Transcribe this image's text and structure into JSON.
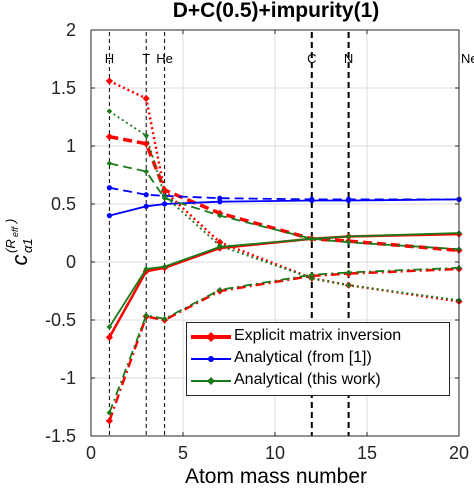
{
  "chart_data": {
    "type": "line",
    "title": "D+C(0.5)+impurity(1)",
    "xlabel": "Atom mass number",
    "ylabel": "c_{α1}^{(R_{eff})}",
    "xlim": [
      0,
      20
    ],
    "ylim": [
      -1.5,
      2
    ],
    "xticks": [
      0,
      5,
      10,
      15,
      20
    ],
    "xtick_labels": [
      "0",
      "5",
      "10",
      "15",
      "20"
    ],
    "yticks": [
      -1.5,
      -1,
      -0.5,
      0,
      0.5,
      1,
      1.5,
      2
    ],
    "ytick_labels": [
      "-1.5",
      "-1",
      "-0.5",
      "0",
      "0.5",
      "1",
      "1.5",
      "2"
    ],
    "grid": true,
    "legend_position": "bottom-right",
    "vlines": [
      {
        "x": 1,
        "label": "H",
        "style": "thin"
      },
      {
        "x": 3,
        "label": "T",
        "style": "thin"
      },
      {
        "x": 4,
        "label": "He",
        "style": "thin"
      },
      {
        "x": 12,
        "label": "C",
        "style": "thick"
      },
      {
        "x": 14,
        "label": "N",
        "style": "thick"
      },
      {
        "x": 20,
        "label": "Ne",
        "style": "thin"
      }
    ],
    "x": [
      1,
      3,
      4,
      7,
      12,
      14,
      20
    ],
    "legend": [
      {
        "label": "Explicit matrix inversion",
        "color": "#ff0000"
      },
      {
        "label": "Analytical (from [1])",
        "color": "#0000ff"
      },
      {
        "label": "Analytical (this work)",
        "color": "#1a7a1a"
      }
    ],
    "series": [
      {
        "group": "Explicit matrix inversion",
        "line": "solid",
        "values": [
          -0.65,
          -0.08,
          -0.05,
          0.12,
          0.2,
          0.22,
          0.24
        ]
      },
      {
        "group": "Explicit matrix inversion",
        "line": "dashed",
        "values": [
          1.08,
          1.02,
          0.62,
          0.42,
          0.2,
          0.18,
          0.1
        ]
      },
      {
        "group": "Explicit matrix inversion",
        "line": "dotted",
        "values": [
          1.56,
          1.41,
          0.61,
          0.17,
          -0.14,
          -0.2,
          -0.34
        ]
      },
      {
        "group": "Explicit matrix inversion",
        "line": "dashdot",
        "values": [
          -1.37,
          -0.47,
          -0.5,
          -0.25,
          -0.12,
          -0.1,
          -0.06
        ]
      },
      {
        "group": "Analytical (from [1])",
        "line": "solid",
        "values": [
          0.4,
          0.48,
          0.5,
          0.52,
          0.53,
          0.53,
          0.54
        ]
      },
      {
        "group": "Analytical (from [1])",
        "line": "dashed",
        "values": [
          0.64,
          0.58,
          0.57,
          0.55,
          0.54,
          0.54,
          0.54
        ]
      },
      {
        "group": "Analytical (this work)",
        "line": "solid",
        "values": [
          -0.56,
          -0.06,
          -0.04,
          0.13,
          0.2,
          0.22,
          0.25
        ]
      },
      {
        "group": "Analytical (this work)",
        "line": "dashed",
        "values": [
          0.85,
          0.78,
          0.55,
          0.4,
          0.2,
          0.17,
          0.11
        ]
      },
      {
        "group": "Analytical (this work)",
        "line": "dotted",
        "values": [
          1.3,
          1.09,
          0.57,
          0.14,
          -0.14,
          -0.2,
          -0.33
        ]
      },
      {
        "group": "Analytical (this work)",
        "line": "dashdot",
        "values": [
          -1.3,
          -0.46,
          -0.49,
          -0.24,
          -0.11,
          -0.09,
          -0.05
        ]
      }
    ]
  }
}
